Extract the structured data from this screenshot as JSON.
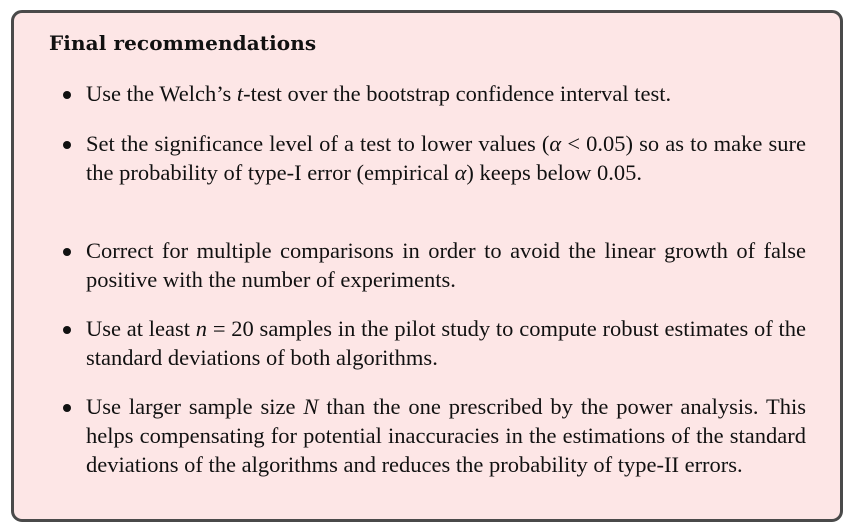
{
  "title": "Final recommendations",
  "items": [
    {
      "segments": [
        {
          "t": "Use the Welch’s ",
          "m": false
        },
        {
          "t": "t",
          "m": true
        },
        {
          "t": "-test over the bootstrap confidence interval test.",
          "m": false
        }
      ]
    },
    {
      "segments": [
        {
          "t": "Set the significance level of a test to lower values (",
          "m": false
        },
        {
          "t": "α",
          "m": true
        },
        {
          "t": " < 0.05) so as to make sure the probability of type-I error (empirical ",
          "m": false
        },
        {
          "t": "α",
          "m": true
        },
        {
          "t": ") keeps below 0.05.",
          "m": false
        }
      ]
    },
    {
      "segments": [
        {
          "t": "Correct for multiple comparisons in order to avoid the linear growth of false positive with the number of experiments.",
          "m": false
        }
      ]
    },
    {
      "segments": [
        {
          "t": "Use at least ",
          "m": false
        },
        {
          "t": "n",
          "m": true
        },
        {
          "t": " = 20 samples in the pilot study to compute robust estimates of the standard deviations of both algorithms.",
          "m": false
        }
      ]
    },
    {
      "segments": [
        {
          "t": "Use larger sample size ",
          "m": false
        },
        {
          "t": "N",
          "m": true
        },
        {
          "t": " than the one prescribed by the power analysis. This helps compensating for potential inaccuracies in the estimations of the standard deviations of the algorithms and reduces the probability of type-II errors.",
          "m": false
        }
      ]
    }
  ]
}
